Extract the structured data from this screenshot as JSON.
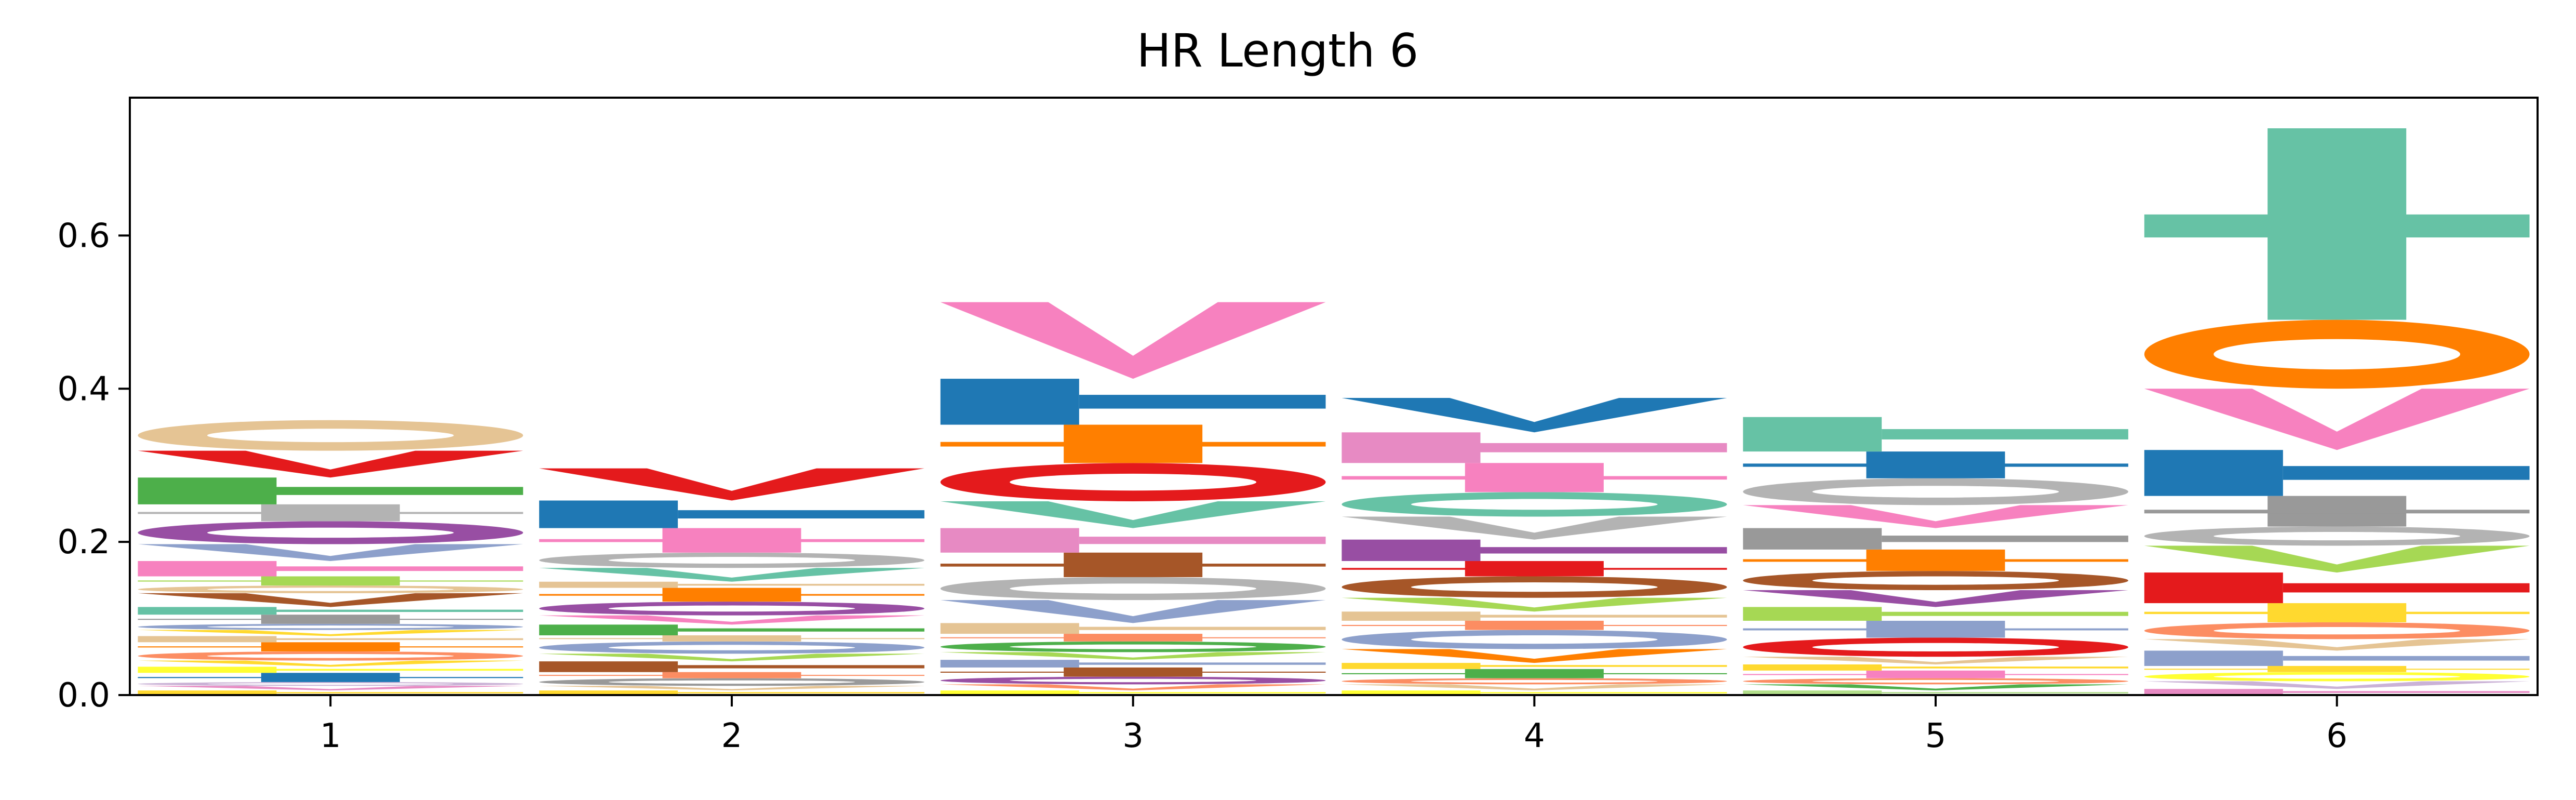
{
  "chart_data": {
    "type": "bar",
    "title": "HR Length 6",
    "xlabel": "",
    "ylabel": "",
    "x_ticks": [
      "1",
      "2",
      "3",
      "4",
      "5",
      "6"
    ],
    "y_ticks": [
      "0.0",
      "0.2",
      "0.4",
      "0.6"
    ],
    "ylim": [
      0,
      0.78
    ],
    "grid": false,
    "legend": "none",
    "palette": {
      "teal": "#66c2a5",
      "orange": "#ff7f00",
      "pink": "#f781bf",
      "blue": "#1f78b4",
      "red": "#e41a1c",
      "grey": "#999999",
      "lightgrey": "#b3b3b3",
      "brown": "#a65628",
      "purple": "#984ea3",
      "periwinkle": "#8da0cb",
      "green": "#4daf4a",
      "lime": "#a6d854",
      "tan": "#e5c494",
      "salmon": "#fc8d62",
      "yellow": "#ffd92f",
      "brightyellow": "#ffff33",
      "magenta": "#e78ac3",
      "lilac": "#cab2d6",
      "lightgreen": "#b2df8a"
    },
    "positions": [
      {
        "position": 1,
        "total": 0.345,
        "letters": [
          {
            "c": "yellow",
            "h": 0.006
          },
          {
            "c": "magenta",
            "h": 0.006
          },
          {
            "c": "lilac",
            "h": 0.005
          },
          {
            "c": "blue",
            "h": 0.012
          },
          {
            "c": "brightyellow",
            "h": 0.008
          },
          {
            "c": "yellow",
            "h": 0.008
          },
          {
            "c": "salmon",
            "h": 0.012
          },
          {
            "c": "orange",
            "h": 0.012
          },
          {
            "c": "tan",
            "h": 0.008
          },
          {
            "c": "yellow",
            "h": 0.008
          },
          {
            "c": "periwinkle",
            "h": 0.008
          },
          {
            "c": "grey",
            "h": 0.012
          },
          {
            "c": "teal",
            "h": 0.01
          },
          {
            "c": "brown",
            "h": 0.018
          },
          {
            "c": "tan",
            "h": 0.01
          },
          {
            "c": "lime",
            "h": 0.012
          },
          {
            "c": "pink",
            "h": 0.02
          },
          {
            "c": "periwinkle",
            "h": 0.022
          },
          {
            "c": "purple",
            "h": 0.03
          },
          {
            "c": "lightgrey",
            "h": 0.022
          },
          {
            "c": "green",
            "h": 0.035
          },
          {
            "c": "red",
            "h": 0.035
          },
          {
            "c": "tan",
            "h": 0.04
          }
        ]
      },
      {
        "position": 2,
        "total": 0.335,
        "letters": [
          {
            "c": "yellow",
            "h": 0.006
          },
          {
            "c": "tan",
            "h": 0.006
          },
          {
            "c": "grey",
            "h": 0.01
          },
          {
            "c": "salmon",
            "h": 0.008
          },
          {
            "c": "brown",
            "h": 0.014
          },
          {
            "c": "lime",
            "h": 0.01
          },
          {
            "c": "periwinkle",
            "h": 0.016
          },
          {
            "c": "tan",
            "h": 0.008
          },
          {
            "c": "green",
            "h": 0.014
          },
          {
            "c": "pink",
            "h": 0.012
          },
          {
            "c": "purple",
            "h": 0.018
          },
          {
            "c": "orange",
            "h": 0.018
          },
          {
            "c": "tan",
            "h": 0.008
          },
          {
            "c": "teal",
            "h": 0.018
          },
          {
            "c": "lightgrey",
            "h": 0.02
          },
          {
            "c": "pink",
            "h": 0.032
          },
          {
            "c": "blue",
            "h": 0.036
          },
          {
            "c": "red",
            "h": 0.042
          }
        ]
      },
      {
        "position": 3,
        "total": 0.545,
        "letters": [
          {
            "c": "brightyellow",
            "h": 0.006
          },
          {
            "c": "salmon",
            "h": 0.008
          },
          {
            "c": "purple",
            "h": 0.01
          },
          {
            "c": "brown",
            "h": 0.012
          },
          {
            "c": "periwinkle",
            "h": 0.01
          },
          {
            "c": "lime",
            "h": 0.01
          },
          {
            "c": "green",
            "h": 0.014
          },
          {
            "c": "salmon",
            "h": 0.01
          },
          {
            "c": "tan",
            "h": 0.014
          },
          {
            "c": "periwinkle",
            "h": 0.03
          },
          {
            "c": "lightgrey",
            "h": 0.03
          },
          {
            "c": "brown",
            "h": 0.032
          },
          {
            "c": "magenta",
            "h": 0.032
          },
          {
            "c": "teal",
            "h": 0.035
          },
          {
            "c": "red",
            "h": 0.05
          },
          {
            "c": "orange",
            "h": 0.05
          },
          {
            "c": "blue",
            "h": 0.06
          },
          {
            "c": "pink",
            "h": 0.1
          }
        ]
      },
      {
        "position": 4,
        "total": 0.405,
        "letters": [
          {
            "c": "brightyellow",
            "h": 0.006
          },
          {
            "c": "tan",
            "h": 0.008
          },
          {
            "c": "salmon",
            "h": 0.008
          },
          {
            "c": "green",
            "h": 0.012
          },
          {
            "c": "yellow",
            "h": 0.008
          },
          {
            "c": "orange",
            "h": 0.018
          },
          {
            "c": "periwinkle",
            "h": 0.025
          },
          {
            "c": "salmon",
            "h": 0.012
          },
          {
            "c": "tan",
            "h": 0.012
          },
          {
            "c": "lime",
            "h": 0.018
          },
          {
            "c": "brown",
            "h": 0.028
          },
          {
            "c": "red",
            "h": 0.02
          },
          {
            "c": "purple",
            "h": 0.028
          },
          {
            "c": "lightgrey",
            "h": 0.03
          },
          {
            "c": "teal",
            "h": 0.032
          },
          {
            "c": "pink",
            "h": 0.038
          },
          {
            "c": "magenta",
            "h": 0.04
          },
          {
            "c": "blue",
            "h": 0.045
          }
        ]
      },
      {
        "position": 5,
        "total": 0.38,
        "letters": [
          {
            "c": "lightgreen",
            "h": 0.006
          },
          {
            "c": "green",
            "h": 0.008
          },
          {
            "c": "salmon",
            "h": 0.008
          },
          {
            "c": "pink",
            "h": 0.01
          },
          {
            "c": "yellow",
            "h": 0.008
          },
          {
            "c": "tan",
            "h": 0.01
          },
          {
            "c": "red",
            "h": 0.025
          },
          {
            "c": "periwinkle",
            "h": 0.022
          },
          {
            "c": "lime",
            "h": 0.018
          },
          {
            "c": "purple",
            "h": 0.022
          },
          {
            "c": "brown",
            "h": 0.025
          },
          {
            "c": "orange",
            "h": 0.028
          },
          {
            "c": "grey",
            "h": 0.028
          },
          {
            "c": "pink",
            "h": 0.03
          },
          {
            "c": "lightgrey",
            "h": 0.035
          },
          {
            "c": "blue",
            "h": 0.035
          },
          {
            "c": "teal",
            "h": 0.045
          }
        ]
      },
      {
        "position": 6,
        "total": 0.78,
        "letters": [
          {
            "c": "magenta",
            "h": 0.008
          },
          {
            "c": "lilac",
            "h": 0.01
          },
          {
            "c": "brightyellow",
            "h": 0.012
          },
          {
            "c": "yellow",
            "h": 0.008
          },
          {
            "c": "periwinkle",
            "h": 0.02
          },
          {
            "c": "tan",
            "h": 0.015
          },
          {
            "c": "salmon",
            "h": 0.022
          },
          {
            "c": "yellow",
            "h": 0.025
          },
          {
            "c": "red",
            "h": 0.04
          },
          {
            "c": "lime",
            "h": 0.035
          },
          {
            "c": "lightgrey",
            "h": 0.025
          },
          {
            "c": "grey",
            "h": 0.04
          },
          {
            "c": "blue",
            "h": 0.06
          },
          {
            "c": "pink",
            "h": 0.08
          },
          {
            "c": "orange",
            "h": 0.09
          },
          {
            "c": "teal",
            "h": 0.25
          }
        ]
      }
    ]
  }
}
